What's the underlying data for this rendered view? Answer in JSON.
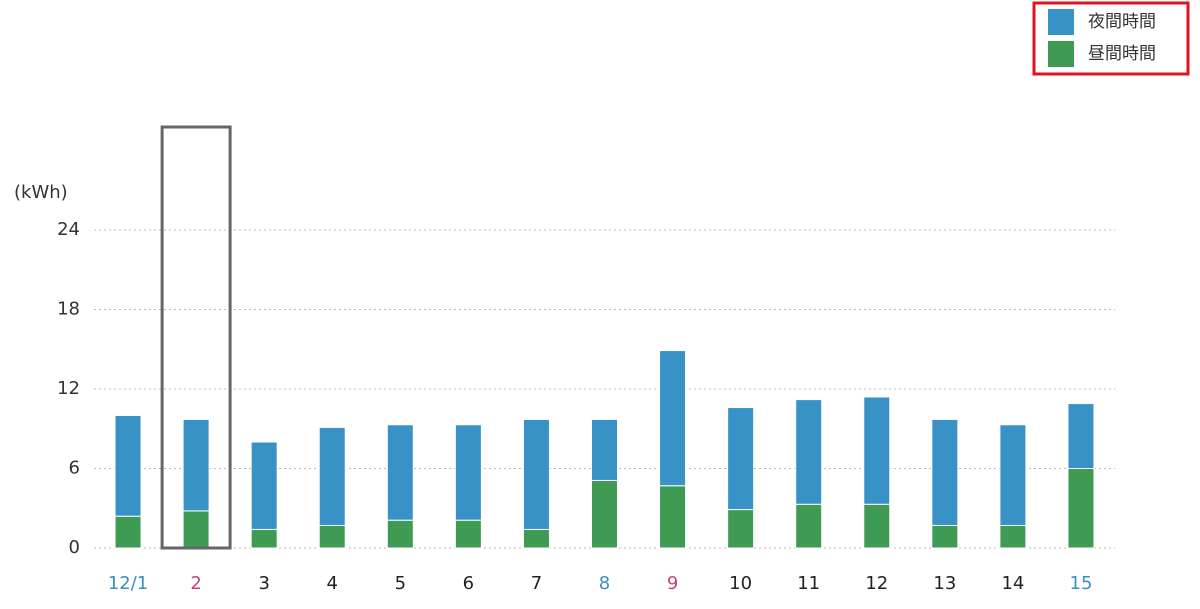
{
  "chart_data": {
    "type": "stacked_bar",
    "y_label": "(kWh)",
    "categories": [
      "12/1",
      "2",
      "3",
      "4",
      "5",
      "6",
      "7",
      "8",
      "9",
      "10",
      "11",
      "12",
      "13",
      "14",
      "15"
    ],
    "category_colors": [
      "#3a8fc4",
      "#c0457a",
      "#222222",
      "#222222",
      "#222222",
      "#222222",
      "#222222",
      "#3a8fc4",
      "#c0457a",
      "#222222",
      "#222222",
      "#222222",
      "#222222",
      "#222222",
      "#3a8fc4"
    ],
    "series": [
      {
        "name": "夜間時間",
        "color": "#3892c6",
        "values": [
          7.6,
          6.9,
          6.6,
          7.4,
          7.2,
          7.2,
          8.3,
          4.6,
          10.2,
          7.7,
          7.9,
          8.1,
          8.0,
          7.6,
          4.9
        ]
      },
      {
        "name": "昼間時間",
        "color": "#3f9a53",
        "values": [
          2.4,
          2.8,
          1.4,
          1.7,
          2.1,
          2.1,
          1.4,
          5.1,
          4.7,
          2.9,
          3.3,
          3.3,
          1.7,
          1.7,
          6.0
        ]
      }
    ],
    "stack_order": "legend_reversed",
    "selected_index": 1,
    "ylim": [
      0,
      24
    ],
    "yticks": [
      0,
      6,
      12,
      18,
      24
    ],
    "grid": true,
    "legend": "top-right"
  }
}
